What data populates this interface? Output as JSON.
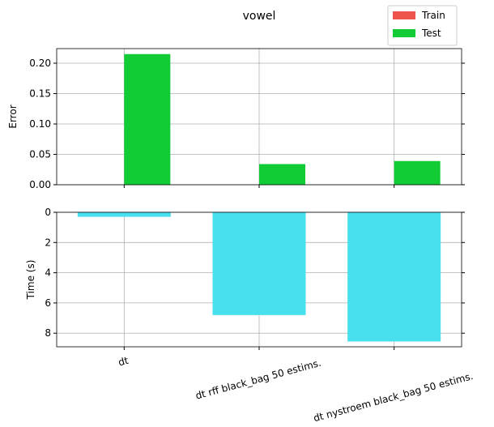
{
  "chart_data": [
    {
      "type": "bar",
      "title": "vowel",
      "ylabel": "Error",
      "series": [
        {
          "name": "Train",
          "color": "#f0524c",
          "values": [
            0,
            0,
            0
          ]
        },
        {
          "name": "Test",
          "color": "#12cc36",
          "values": [
            0.215,
            0.034,
            0.039
          ]
        }
      ],
      "ylim": [
        0,
        0.224
      ],
      "yticks": [
        {
          "value": 0,
          "label": "0.00"
        },
        {
          "value": 0.05,
          "label": "0.05"
        },
        {
          "value": 0.1,
          "label": "0.10"
        },
        {
          "value": 0.15,
          "label": "0.15"
        },
        {
          "value": 0.2,
          "label": "0.20"
        }
      ],
      "grid": true,
      "legend": "upper right"
    },
    {
      "type": "bar",
      "ylabel": "Time (s)",
      "categories": [
        "dt",
        "dt rff black_bag 50 estims.",
        "dt nystroem black_bag 50 estims."
      ],
      "values": [
        0.3,
        6.8,
        8.55
      ],
      "color": "#48dfee",
      "ylim": [
        0,
        8.9
      ],
      "yticks": [
        0,
        2,
        4,
        6,
        8
      ],
      "inverted": true,
      "grid": true
    }
  ]
}
